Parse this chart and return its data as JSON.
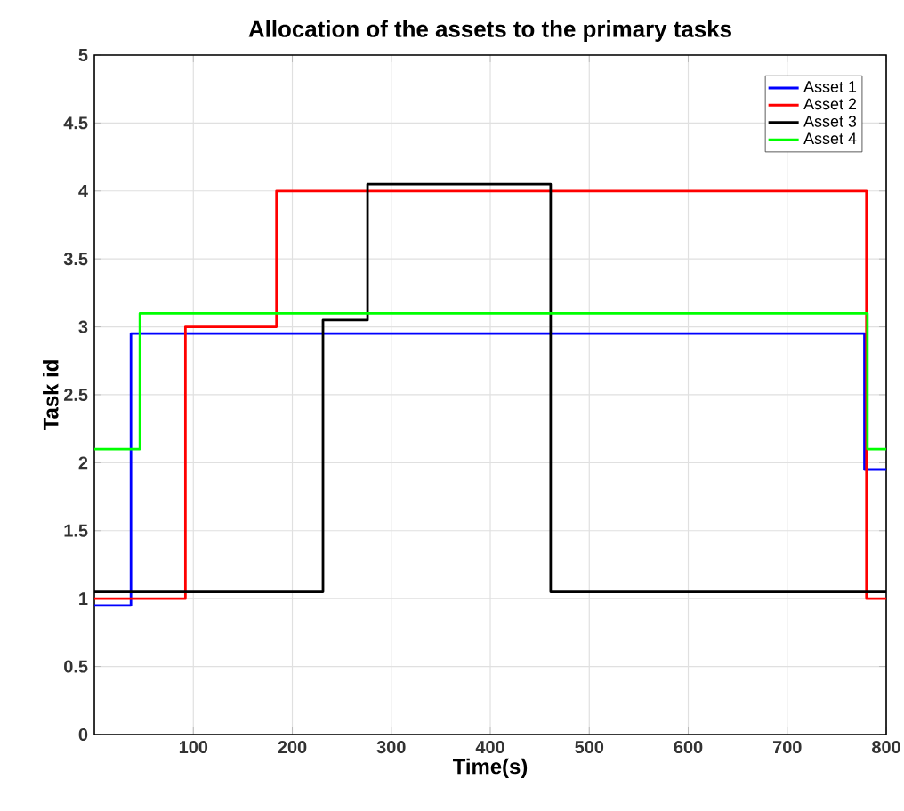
{
  "chart_data": {
    "type": "step",
    "title": "Allocation of the assets to the primary tasks",
    "xlabel": "Time(s)",
    "ylabel": "Task id",
    "xlim": [
      0,
      800
    ],
    "ylim": [
      0,
      5
    ],
    "xticks": [
      100,
      200,
      300,
      400,
      500,
      600,
      700,
      800
    ],
    "yticks": [
      0,
      0.5,
      1,
      1.5,
      2,
      2.5,
      3,
      3.5,
      4,
      4.5,
      5
    ],
    "grid": true,
    "legend": "top right",
    "line_style": "solid",
    "marker": "none",
    "series": [
      {
        "name": "Asset 1",
        "color": "#0000ff",
        "x": [
          0,
          37,
          778,
          800
        ],
        "values": [
          0.95,
          2.95,
          1.95,
          1.95
        ]
      },
      {
        "name": "Asset 2",
        "color": "#ff0000",
        "x": [
          0,
          92,
          184,
          780,
          800
        ],
        "values": [
          1,
          3,
          4,
          1,
          1
        ]
      },
      {
        "name": "Asset 3",
        "color": "#000000",
        "x": [
          0,
          231,
          276,
          461,
          800
        ],
        "values": [
          1.05,
          3.05,
          4.05,
          1.05,
          1.05
        ]
      },
      {
        "name": "Asset 4",
        "color": "#00ff00",
        "x": [
          0,
          46,
          781,
          800
        ],
        "values": [
          2.1,
          3.1,
          2.1,
          2.1
        ]
      }
    ]
  }
}
